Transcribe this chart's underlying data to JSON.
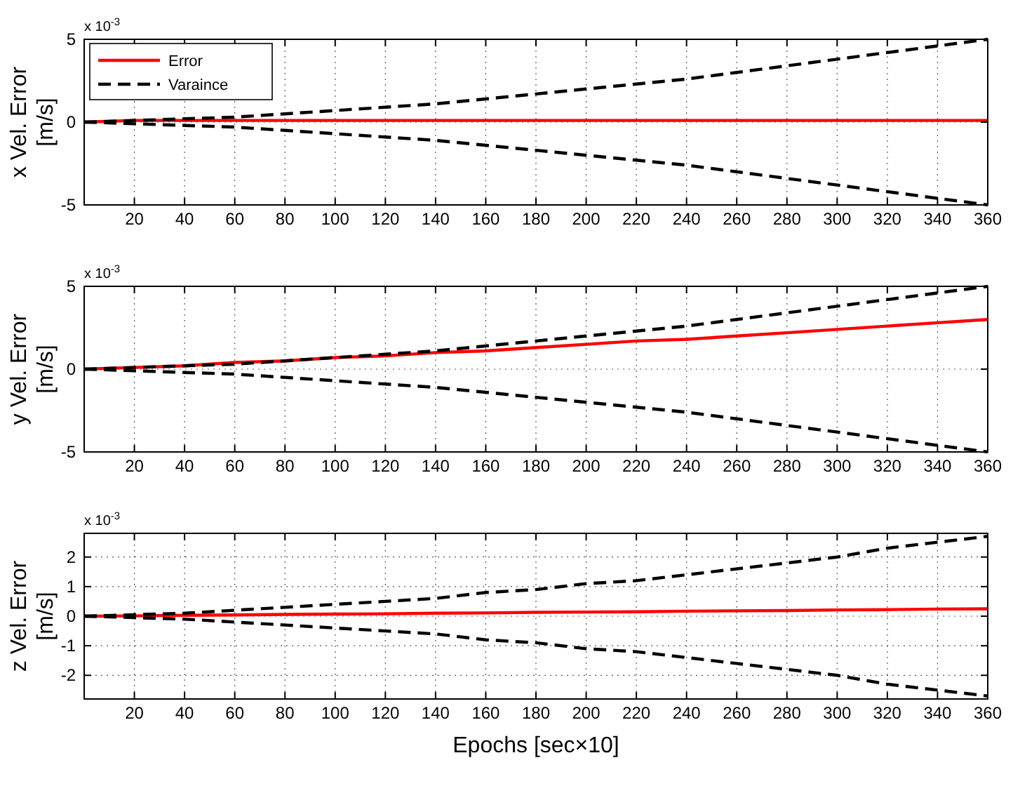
{
  "chart_data": [
    {
      "type": "line",
      "ylabel": "x Vel. Error\n[m/s]",
      "annotations": [
        "x 10$^{-3}$"
      ],
      "x": [
        0,
        20,
        40,
        60,
        80,
        100,
        120,
        140,
        160,
        180,
        200,
        220,
        240,
        260,
        280,
        300,
        320,
        340,
        360
      ],
      "xlim": [
        0,
        360
      ],
      "xticks": [
        20,
        40,
        60,
        80,
        100,
        120,
        140,
        160,
        180,
        200,
        220,
        240,
        260,
        280,
        300,
        320,
        340,
        360
      ],
      "ylim": [
        -5,
        5
      ],
      "yticks": [
        -5,
        0,
        5
      ],
      "grid": true,
      "legend": "top left",
      "series": [
        {
          "name": "Error",
          "color": "#ff0000",
          "line_style": "solid",
          "values": [
            0,
            0.1,
            0.1,
            0.1,
            0.1,
            0.1,
            0.1,
            0.1,
            0.1,
            0.1,
            0.1,
            0.1,
            0.1,
            0.1,
            0.1,
            0.1,
            0.1,
            0.1,
            0.1
          ]
        },
        {
          "name": "Varaince",
          "color": "#000000",
          "line_style": "dashed",
          "values": [
            0,
            0.1,
            0.2,
            0.3,
            0.5,
            0.7,
            0.9,
            1.1,
            1.4,
            1.7,
            2.0,
            2.3,
            2.6,
            3.0,
            3.4,
            3.8,
            4.2,
            4.6,
            5.0
          ]
        },
        {
          "color": "#000000",
          "line_style": "dashed",
          "values": [
            0,
            -0.1,
            -0.2,
            -0.3,
            -0.5,
            -0.7,
            -0.9,
            -1.1,
            -1.4,
            -1.7,
            -2.0,
            -2.3,
            -2.6,
            -3.0,
            -3.4,
            -3.8,
            -4.2,
            -4.6,
            -5.0
          ]
        }
      ]
    },
    {
      "type": "line",
      "ylabel": "y Vel. Error\n[m/s]",
      "annotations": [
        "x 10$^{-3}$"
      ],
      "x": [
        0,
        20,
        40,
        60,
        80,
        100,
        120,
        140,
        160,
        180,
        200,
        220,
        240,
        260,
        280,
        300,
        320,
        340,
        360
      ],
      "xlim": [
        0,
        360
      ],
      "xticks": [
        20,
        40,
        60,
        80,
        100,
        120,
        140,
        160,
        180,
        200,
        220,
        240,
        260,
        280,
        300,
        320,
        340,
        360
      ],
      "ylim": [
        -5,
        5
      ],
      "yticks": [
        -5,
        0,
        5
      ],
      "grid": true,
      "series": [
        {
          "color": "#ff0000",
          "line_style": "solid",
          "values": [
            0,
            0.1,
            0.2,
            0.4,
            0.5,
            0.7,
            0.8,
            1.0,
            1.1,
            1.3,
            1.5,
            1.7,
            1.8,
            2.0,
            2.2,
            2.4,
            2.6,
            2.8,
            3.0
          ]
        },
        {
          "color": "#000000",
          "line_style": "dashed",
          "values": [
            0,
            0.1,
            0.2,
            0.3,
            0.5,
            0.7,
            0.9,
            1.1,
            1.4,
            1.7,
            2.0,
            2.3,
            2.6,
            3.0,
            3.4,
            3.8,
            4.2,
            4.6,
            5.0
          ]
        },
        {
          "color": "#000000",
          "line_style": "dashed",
          "values": [
            0,
            -0.1,
            -0.2,
            -0.3,
            -0.5,
            -0.7,
            -0.9,
            -1.1,
            -1.4,
            -1.7,
            -2.0,
            -2.3,
            -2.6,
            -3.0,
            -3.4,
            -3.8,
            -4.2,
            -4.6,
            -5.0
          ]
        }
      ]
    },
    {
      "type": "line",
      "xlabel": "Epochs [sec×10]",
      "ylabel": "z Vel. Error\n[m/s]",
      "annotations": [
        "x 10$^{-3}$"
      ],
      "x": [
        0,
        20,
        40,
        60,
        80,
        100,
        120,
        140,
        160,
        180,
        200,
        220,
        240,
        260,
        280,
        300,
        320,
        340,
        360
      ],
      "xlim": [
        0,
        360
      ],
      "xticks": [
        20,
        40,
        60,
        80,
        100,
        120,
        140,
        160,
        180,
        200,
        220,
        240,
        260,
        280,
        300,
        320,
        340,
        360
      ],
      "ylim": [
        -2.8,
        2.8
      ],
      "yticks": [
        -2,
        -1,
        0,
        1,
        2
      ],
      "grid": true,
      "series": [
        {
          "color": "#ff0000",
          "line_style": "solid",
          "values": [
            0,
            0.01,
            0.03,
            0.04,
            0.06,
            0.07,
            0.08,
            0.1,
            0.11,
            0.13,
            0.14,
            0.15,
            0.17,
            0.18,
            0.19,
            0.21,
            0.22,
            0.24,
            0.25
          ]
        },
        {
          "color": "#000000",
          "line_style": "dashed",
          "values": [
            0,
            0.05,
            0.1,
            0.2,
            0.3,
            0.4,
            0.5,
            0.6,
            0.8,
            0.9,
            1.1,
            1.2,
            1.4,
            1.6,
            1.8,
            2.0,
            2.3,
            2.5,
            2.7
          ]
        },
        {
          "color": "#000000",
          "line_style": "dashed",
          "values": [
            0,
            -0.05,
            -0.1,
            -0.2,
            -0.3,
            -0.4,
            -0.5,
            -0.6,
            -0.8,
            -0.9,
            -1.1,
            -1.2,
            -1.4,
            -1.6,
            -1.8,
            -2.0,
            -2.3,
            -2.5,
            -2.7
          ]
        }
      ]
    }
  ]
}
